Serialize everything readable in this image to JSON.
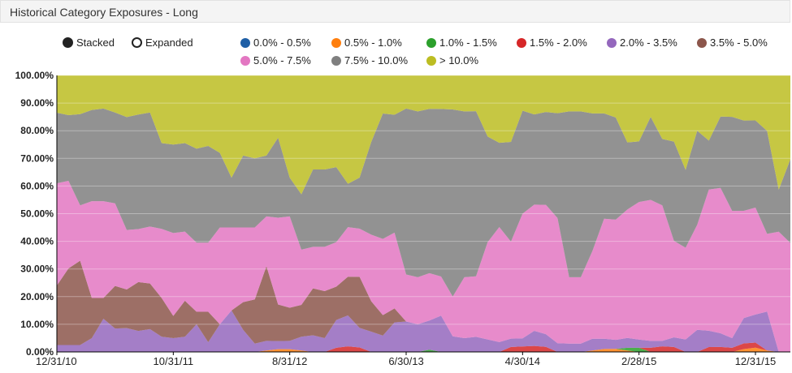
{
  "header": {
    "title": "Historical Category Exposures - Long"
  },
  "mode": {
    "stacked_label": "Stacked",
    "expanded_label": "Expanded",
    "selected": "stacked"
  },
  "chart_data": {
    "type": "area",
    "stacked": true,
    "normalized": true,
    "ylim": [
      0,
      100
    ],
    "y_ticks": [
      "0.00%",
      "10.00%",
      "20.00%",
      "30.00%",
      "40.00%",
      "50.00%",
      "60.00%",
      "70.00%",
      "80.00%",
      "90.00%",
      "100.00%"
    ],
    "x_ticks": [
      {
        "label": "12/31/10",
        "index": 0
      },
      {
        "label": "10/31/11",
        "index": 10
      },
      {
        "label": "8/31/12",
        "index": 20
      },
      {
        "label": "6/30/13",
        "index": 30
      },
      {
        "label": "4/30/14",
        "index": 40
      },
      {
        "label": "2/28/15",
        "index": 50
      },
      {
        "label": "12/31/15",
        "index": 60
      }
    ],
    "grid": true,
    "legend_position": "top",
    "series": [
      {
        "name": "0.0% - 0.5%",
        "color": "#1f5fa6",
        "values": [
          0,
          0,
          0,
          0,
          0,
          0,
          0,
          0,
          0,
          0,
          0,
          0,
          0,
          0,
          0,
          0,
          0,
          0,
          0,
          0,
          0,
          0,
          0,
          0,
          0,
          0,
          0,
          0,
          0,
          0,
          0,
          0,
          0,
          0,
          0,
          0,
          0,
          0,
          0,
          0,
          0,
          0,
          0,
          0,
          0,
          0,
          0,
          0,
          0,
          0,
          0,
          0,
          0,
          0,
          0,
          0,
          0,
          0,
          0,
          0,
          0,
          0,
          0,
          0
        ]
      },
      {
        "name": "0.5% - 1.0%",
        "color": "#ff7f0e",
        "values": [
          0,
          0,
          0,
          0,
          0,
          0,
          0,
          0,
          0,
          0,
          0,
          0,
          0,
          0,
          0,
          0,
          0,
          0,
          0.5,
          1,
          1,
          0.5,
          0,
          0,
          0,
          0,
          0,
          0,
          0,
          0,
          0,
          0,
          0,
          0,
          0,
          0,
          0,
          0,
          0,
          0,
          0,
          0,
          0,
          0,
          0,
          0,
          0.5,
          1,
          1,
          0.5,
          0,
          0,
          0,
          0,
          0,
          0,
          0,
          0,
          0,
          1,
          1.5,
          0.5,
          0,
          0
        ]
      },
      {
        "name": "1.0% - 1.5%",
        "color": "#2ca02c",
        "values": [
          0,
          0,
          0,
          0,
          0,
          0,
          0,
          0,
          0,
          0,
          0,
          0,
          0,
          0,
          0,
          0,
          0,
          0,
          0,
          0,
          0,
          0,
          0,
          0,
          0,
          0,
          0,
          0,
          0,
          0,
          0,
          0,
          0.8,
          0,
          0,
          0,
          0,
          0,
          0,
          0,
          0,
          0,
          0,
          0,
          0,
          0,
          0,
          0,
          0,
          1,
          1.5,
          0,
          0,
          0,
          0,
          0,
          0,
          0,
          0,
          0,
          0,
          0,
          0,
          0
        ]
      },
      {
        "name": "1.5% - 2.0%",
        "color": "#d62728",
        "values": [
          0,
          0,
          0,
          0,
          0,
          0,
          0,
          0,
          0,
          0,
          0,
          0,
          0,
          0,
          0,
          0,
          0,
          0,
          0,
          0,
          0,
          0,
          0,
          0,
          1.5,
          1.8,
          1.5,
          0,
          0,
          0,
          0,
          0,
          0,
          0,
          0,
          0,
          0,
          0,
          0,
          1.8,
          2,
          2,
          1.8,
          0,
          0,
          0,
          0,
          0,
          0,
          0,
          0,
          1.5,
          2,
          1.8,
          0,
          0,
          1.8,
          1.8,
          1.5,
          2,
          1.8,
          0,
          0,
          0
        ]
      },
      {
        "name": "2.0% - 3.5%",
        "color": "#9467bd",
        "values": [
          2.5,
          2.5,
          2.5,
          5,
          12,
          8.5,
          8,
          7.5,
          8,
          5.5,
          5,
          5.5,
          10,
          3.5,
          10,
          15,
          8,
          3,
          3.5,
          3,
          3,
          5,
          6,
          5,
          10,
          10,
          6.5,
          7,
          6,
          10.5,
          11,
          10,
          10.5,
          13,
          5.5,
          5,
          5.5,
          4.5,
          3.5,
          3,
          3,
          5,
          4.5,
          3,
          3,
          3,
          4,
          3.5,
          3,
          3.5,
          3,
          2.5,
          2,
          3.5,
          4.5,
          8,
          6,
          5,
          3.5,
          9,
          10,
          14,
          0,
          0
        ]
      },
      {
        "name": "3.5% - 5.0%",
        "color": "#8c564b",
        "values": [
          21.5,
          28,
          30.5,
          14.5,
          7.5,
          15.5,
          13,
          17.5,
          16,
          14,
          8,
          13,
          4.5,
          11,
          0,
          0,
          10,
          16,
          27,
          13.5,
          12,
          11.5,
          17,
          17,
          12,
          12.5,
          17,
          10.5,
          7.5,
          5,
          0,
          0,
          0,
          0,
          0,
          0,
          0,
          0,
          0,
          0,
          0,
          0,
          0,
          0,
          0,
          0,
          0,
          0,
          0,
          0,
          0,
          0,
          0,
          0,
          0,
          0,
          0,
          0,
          0,
          0,
          0,
          0,
          0,
          0
        ]
      },
      {
        "name": "5.0% - 7.5%",
        "color": "#e377c2",
        "values": [
          37,
          32,
          20,
          35,
          35,
          30,
          20,
          19,
          20,
          25,
          30,
          25,
          25,
          25,
          35,
          30,
          27,
          26,
          18,
          32,
          33,
          20,
          15,
          16,
          16,
          16,
          16,
          23,
          28,
          27,
          17,
          17,
          17,
          14,
          14,
          22,
          22,
          35,
          41,
          35,
          46,
          42,
          46,
          43,
          24,
          24,
          30,
          41,
          40,
          46,
          50,
          51,
          49,
          35,
          33,
          38,
          52,
          53,
          46,
          38,
          38,
          28,
          40,
          39
        ]
      },
      {
        "name": "7.5% - 10.0%",
        "color": "#7f7f7f",
        "values": [
          25.5,
          24,
          33,
          33,
          33.5,
          33,
          38,
          41,
          40,
          31,
          32,
          32,
          34,
          35,
          27,
          18,
          26,
          25,
          22,
          29.5,
          14,
          20,
          28,
          28,
          27,
          14,
          17,
          32,
          46,
          42,
          60,
          60,
          59,
          60,
          66,
          60,
          60,
          38,
          30,
          36,
          38,
          30,
          33,
          36,
          60,
          60,
          47,
          36,
          34,
          24,
          22,
          30,
          24,
          36,
          28,
          34,
          18,
          26,
          34,
          32,
          31,
          37,
          14,
          30
        ]
      },
      {
        "name": "> 10.0%",
        "color": "#bcbd22",
        "values": [
          13.5,
          14.5,
          14,
          12.5,
          12,
          13.5,
          14,
          14,
          13,
          24.5,
          25,
          24.5,
          26.5,
          25.5,
          28,
          37,
          29,
          30,
          29,
          23,
          37,
          43,
          34,
          34,
          33,
          35,
          34,
          23,
          14,
          14,
          12,
          13,
          12,
          12,
          12,
          13,
          13,
          22,
          24,
          24,
          13,
          13,
          13,
          13,
          13,
          13,
          13,
          13,
          14,
          24,
          24,
          15,
          23,
          24,
          34,
          20,
          24,
          15,
          15,
          16,
          16,
          20,
          38,
          30
        ]
      }
    ]
  }
}
